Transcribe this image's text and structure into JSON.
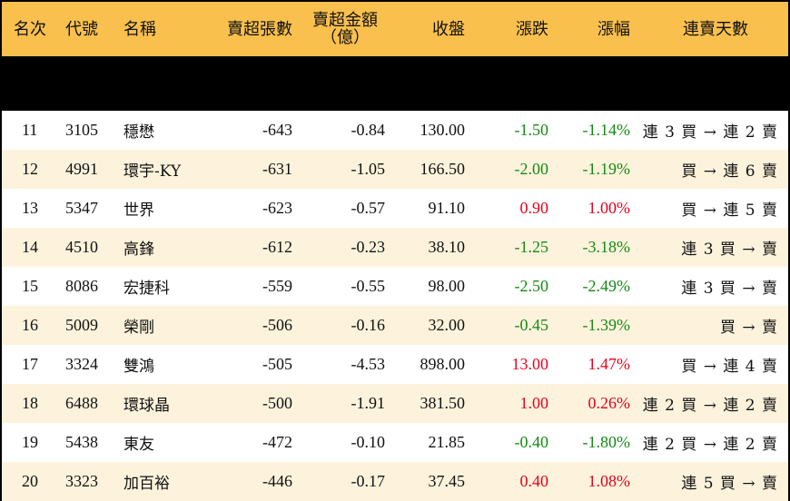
{
  "table": {
    "headers": {
      "rank": "名次",
      "code": "代號",
      "name": "名稱",
      "net_sell_lots": "賣超張數",
      "net_sell_amount_line1": "賣超金額",
      "net_sell_amount_line2": "（億）",
      "close": "收盤",
      "change": "漲跌",
      "change_pct": "漲幅",
      "consecutive_days": "連賣天數"
    },
    "colors": {
      "header_bg": "#f9c04d",
      "row_alt_bg": "#fdf3dc",
      "up": "#e8001c",
      "down": "#138a13"
    },
    "rows": [
      {
        "rank": "11",
        "code": "3105",
        "name": "穩懋",
        "lots": "-643",
        "amount": "-0.84",
        "close": "130.00",
        "change": "-1.50",
        "pct": "-1.14%",
        "dir": "down",
        "trend": "連 3 買 → 連 2 賣"
      },
      {
        "rank": "12",
        "code": "4991",
        "name": "環宇-KY",
        "lots": "-631",
        "amount": "-1.05",
        "close": "166.50",
        "change": "-2.00",
        "pct": "-1.19%",
        "dir": "down",
        "trend": "買 → 連 6 賣"
      },
      {
        "rank": "13",
        "code": "5347",
        "name": "世界",
        "lots": "-623",
        "amount": "-0.57",
        "close": "91.10",
        "change": "0.90",
        "pct": "1.00%",
        "dir": "up",
        "trend": "買 → 連 5 賣"
      },
      {
        "rank": "14",
        "code": "4510",
        "name": "高鋒",
        "lots": "-612",
        "amount": "-0.23",
        "close": "38.10",
        "change": "-1.25",
        "pct": "-3.18%",
        "dir": "down",
        "trend": "連 3 買 → 賣"
      },
      {
        "rank": "15",
        "code": "8086",
        "name": "宏捷科",
        "lots": "-559",
        "amount": "-0.55",
        "close": "98.00",
        "change": "-2.50",
        "pct": "-2.49%",
        "dir": "down",
        "trend": "連 3 買 → 賣"
      },
      {
        "rank": "16",
        "code": "5009",
        "name": "榮剛",
        "lots": "-506",
        "amount": "-0.16",
        "close": "32.00",
        "change": "-0.45",
        "pct": "-1.39%",
        "dir": "down",
        "trend": "買 → 賣"
      },
      {
        "rank": "17",
        "code": "3324",
        "name": "雙鴻",
        "lots": "-505",
        "amount": "-4.53",
        "close": "898.00",
        "change": "13.00",
        "pct": "1.47%",
        "dir": "up",
        "trend": "買 → 連 4 賣"
      },
      {
        "rank": "18",
        "code": "6488",
        "name": "環球晶",
        "lots": "-500",
        "amount": "-1.91",
        "close": "381.50",
        "change": "1.00",
        "pct": "0.26%",
        "dir": "up",
        "trend": "連 2 買 → 連 2 賣"
      },
      {
        "rank": "19",
        "code": "5438",
        "name": "東友",
        "lots": "-472",
        "amount": "-0.10",
        "close": "21.85",
        "change": "-0.40",
        "pct": "-1.80%",
        "dir": "down",
        "trend": "連 2 買 → 連 2 賣"
      },
      {
        "rank": "20",
        "code": "3323",
        "name": "加百裕",
        "lots": "-446",
        "amount": "-0.17",
        "close": "37.45",
        "change": "0.40",
        "pct": "1.08%",
        "dir": "up",
        "trend": "連 5 買 → 賣"
      }
    ]
  }
}
